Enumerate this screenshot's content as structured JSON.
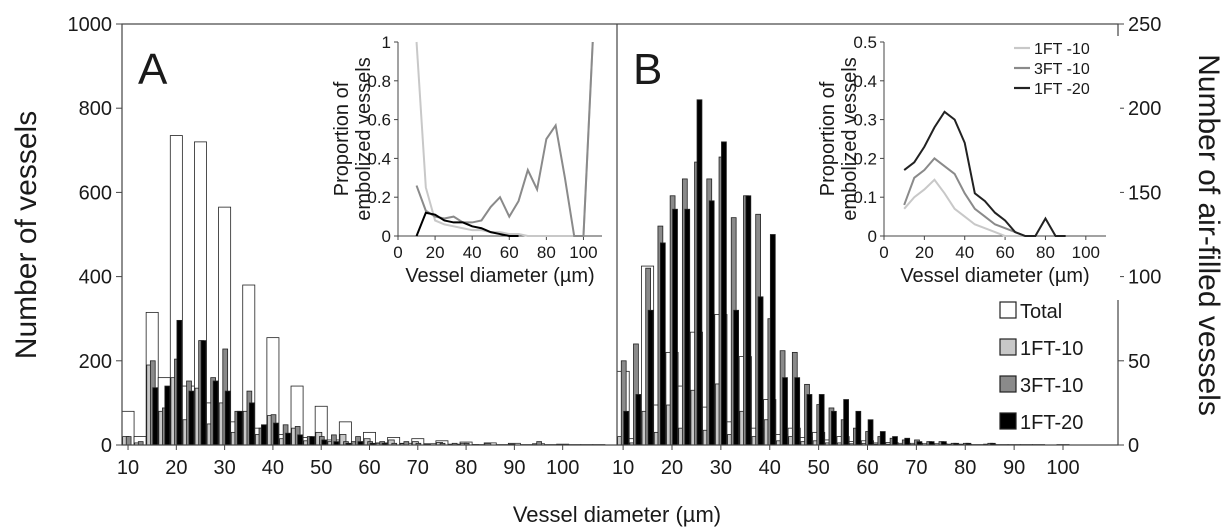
{
  "figure": {
    "xlabel": "Vessel diameter (µm)",
    "ylabel_left": "Number of vessels",
    "ylabel_right": "Number of air-filled vessels",
    "colors": {
      "Total": "#ffffff",
      "1FT-10": "#c8c8c8",
      "3FT-10": "#8a8a8a",
      "1FT-20": "#000000"
    }
  },
  "chart_data": [
    {
      "type": "bar",
      "panel_label": "A",
      "x_tick_labels": [
        "10",
        "20",
        "30",
        "40",
        "50",
        "60",
        "70",
        "80",
        "90",
        "100"
      ],
      "x_bins": [
        10,
        12.5,
        15,
        17.5,
        20,
        22.5,
        25,
        27.5,
        30,
        32.5,
        35,
        37.5,
        40,
        42.5,
        45,
        47.5,
        50,
        52.5,
        55,
        57.5,
        60,
        62.5,
        65,
        67.5,
        70,
        72.5,
        75,
        77.5,
        80,
        82.5,
        85,
        87.5,
        90,
        92.5,
        95,
        97.5,
        100,
        102.5,
        105,
        107.5
      ],
      "xlim": [
        8.75,
        111.25
      ],
      "y_left_ticks": [
        "0",
        "200",
        "400",
        "600",
        "800",
        "1000"
      ],
      "y_left_lim": [
        0,
        1000
      ],
      "y_right_lim": [
        0,
        250
      ],
      "series": [
        {
          "name": "Total",
          "axis": "left",
          "values": [
            80,
            20,
            315,
            160,
            735,
            140,
            720,
            100,
            565,
            55,
            380,
            40,
            255,
            25,
            140,
            18,
            92,
            12,
            55,
            8,
            30,
            5,
            18,
            4,
            15,
            3,
            10,
            2,
            7,
            1,
            5,
            1,
            4,
            1,
            3,
            1,
            2,
            1,
            1,
            1
          ]
        },
        {
          "name": "1FT-10",
          "axis": "left",
          "values": [
            20,
            5,
            190,
            80,
            160,
            60,
            135,
            50,
            100,
            30,
            80,
            25,
            70,
            15,
            40,
            10,
            30,
            8,
            25,
            5,
            15,
            4,
            12,
            3,
            8,
            2,
            6,
            1,
            4,
            1,
            3,
            0,
            2,
            0,
            1,
            0,
            1,
            0,
            0,
            0
          ]
        },
        {
          "name": "3FT-10",
          "axis": "right",
          "values": [
            5,
            2,
            50,
            22,
            51,
            38,
            62,
            40,
            57,
            20,
            32,
            10,
            18,
            12,
            11,
            5,
            5,
            6,
            2,
            5,
            2,
            2,
            1,
            2,
            1,
            0,
            1,
            1,
            1,
            0,
            0,
            0,
            0,
            0,
            2,
            0,
            0,
            0,
            0,
            0
          ]
        },
        {
          "name": "1FT-20",
          "axis": "right",
          "values": [
            0,
            0,
            34,
            35,
            74,
            32,
            62,
            38,
            32,
            20,
            25,
            12,
            13,
            7,
            6,
            5,
            3,
            2,
            1,
            2,
            1,
            1,
            0,
            0,
            0,
            0,
            0,
            0,
            0,
            0,
            0,
            0,
            0,
            0,
            0,
            0,
            0,
            0,
            0,
            0
          ]
        }
      ],
      "inset": {
        "type": "line",
        "xlabel": "Vessel diameter (µm)",
        "ylabel": [
          "Proportion of",
          "embolized vessels"
        ],
        "xlim": [
          0,
          110
        ],
        "ylim": [
          0,
          1
        ],
        "x_ticks": [
          "0",
          "20",
          "40",
          "60",
          "80",
          "100"
        ],
        "y_ticks": [
          "0",
          "0.2",
          "0.4",
          "0.6",
          "0.8",
          "1"
        ],
        "series": [
          {
            "name": "1FT-10",
            "color": "#c8c8c8",
            "points": [
              [
                10,
                1.0
              ],
              [
                15,
                0.25
              ],
              [
                20,
                0.08
              ],
              [
                25,
                0.06
              ],
              [
                30,
                0.05
              ],
              [
                35,
                0.04
              ],
              [
                40,
                0.03
              ],
              [
                45,
                0.03
              ],
              [
                50,
                0.02
              ],
              [
                55,
                0.02
              ],
              [
                60,
                0.01
              ],
              [
                65,
                0.01
              ],
              [
                70,
                0.0
              ],
              [
                80,
                0.0
              ],
              [
                90,
                0.0
              ],
              [
                100,
                0.0
              ],
              [
                105,
                1.0
              ]
            ]
          },
          {
            "name": "3FT-10",
            "color": "#8a8a8a",
            "points": [
              [
                10,
                0.26
              ],
              [
                15,
                0.13
              ],
              [
                20,
                0.1
              ],
              [
                25,
                0.09
              ],
              [
                30,
                0.1
              ],
              [
                35,
                0.07
              ],
              [
                40,
                0.07
              ],
              [
                45,
                0.08
              ],
              [
                50,
                0.15
              ],
              [
                55,
                0.2
              ],
              [
                60,
                0.1
              ],
              [
                65,
                0.18
              ],
              [
                70,
                0.34
              ],
              [
                75,
                0.24
              ],
              [
                80,
                0.5
              ],
              [
                85,
                0.57
              ],
              [
                90,
                0.3
              ],
              [
                95,
                0.0
              ],
              [
                100,
                0.0
              ],
              [
                105,
                1.0
              ]
            ]
          },
          {
            "name": "1FT-20",
            "color": "#000000",
            "points": [
              [
                10,
                0.0
              ],
              [
                15,
                0.12
              ],
              [
                20,
                0.11
              ],
              [
                25,
                0.08
              ],
              [
                30,
                0.07
              ],
              [
                35,
                0.07
              ],
              [
                40,
                0.05
              ],
              [
                45,
                0.04
              ],
              [
                50,
                0.02
              ],
              [
                55,
                0.01
              ],
              [
                60,
                0.0
              ],
              [
                65,
                0.0
              ]
            ]
          }
        ]
      }
    },
    {
      "type": "bar",
      "panel_label": "B",
      "x_tick_labels": [
        "10",
        "20",
        "30",
        "40",
        "50",
        "60",
        "70",
        "80",
        "90",
        "100"
      ],
      "x_bins": [
        10,
        12.5,
        15,
        17.5,
        20,
        22.5,
        25,
        27.5,
        30,
        32.5,
        35,
        37.5,
        40,
        42.5,
        45,
        47.5,
        50,
        52.5,
        55,
        57.5,
        60,
        62.5,
        65,
        67.5,
        70,
        72.5,
        75,
        77.5,
        80,
        82.5,
        85,
        87.5,
        90,
        92.5,
        95,
        97.5,
        100,
        102.5,
        105,
        107.5
      ],
      "xlim": [
        8.75,
        111.25
      ],
      "y_right_ticks": [
        "0",
        "50",
        "100",
        "150",
        "200",
        "250"
      ],
      "y_left_lim": [
        0,
        1000
      ],
      "y_right_lim": [
        0,
        250
      ],
      "series": [
        {
          "name": "Total",
          "axis": "left",
          "values": [
            175,
            15,
            425,
            95,
            220,
            140,
            268,
            90,
            310,
            55,
            210,
            40,
            108,
            25,
            40,
            18,
            30,
            12,
            20,
            8,
            10,
            5,
            6,
            4,
            4,
            3,
            3,
            2,
            2,
            1,
            2,
            1,
            1,
            1,
            1,
            0,
            1,
            0,
            0,
            0
          ]
        },
        {
          "name": "1FT-10",
          "axis": "left",
          "values": [
            20,
            5,
            80,
            30,
            95,
            40,
            130,
            35,
            145,
            25,
            80,
            20,
            60,
            10,
            20,
            8,
            10,
            5,
            5,
            3,
            4,
            2,
            2,
            1,
            1,
            0,
            0,
            0,
            0,
            0,
            0,
            0,
            0,
            0,
            0,
            0,
            0,
            0,
            0,
            0
          ]
        },
        {
          "name": "3FT-10",
          "axis": "right",
          "values": [
            50,
            60,
            105,
            130,
            148,
            158,
            168,
            158,
            171,
            135,
            148,
            137,
            75,
            56,
            55,
            36,
            24,
            22,
            15,
            10,
            8,
            5,
            4,
            3,
            3,
            2,
            2,
            1,
            1,
            0,
            1,
            0,
            0,
            0,
            0,
            0,
            0,
            0,
            0,
            0
          ]
        },
        {
          "name": "1FT-20",
          "axis": "right",
          "values": [
            20,
            30,
            80,
            120,
            140,
            140,
            205,
            145,
            180,
            80,
            148,
            88,
            125,
            40,
            40,
            30,
            30,
            20,
            27,
            20,
            15,
            8,
            5,
            4,
            2,
            2,
            2,
            1,
            1,
            0,
            1,
            0,
            0,
            0,
            0,
            0,
            0,
            0,
            0,
            0
          ]
        }
      ],
      "inset": {
        "type": "line",
        "xlabel": "Vessel diameter (µm)",
        "ylabel": [
          "Proportion of",
          "embolized vessels"
        ],
        "xlim": [
          0,
          110
        ],
        "ylim": [
          0,
          0.5
        ],
        "x_ticks": [
          "0",
          "20",
          "40",
          "60",
          "80",
          "100"
        ],
        "y_ticks": [
          "0",
          "0.1",
          "0.2",
          "0.3",
          "0.4",
          "0.5"
        ],
        "legend_labels": [
          "1FT -10",
          "3FT -10",
          "1FT -20"
        ],
        "series": [
          {
            "name": "1FT -10",
            "color": "#c8c8c8",
            "points": [
              [
                10,
                0.07
              ],
              [
                15,
                0.1
              ],
              [
                20,
                0.12
              ],
              [
                25,
                0.145
              ],
              [
                30,
                0.11
              ],
              [
                35,
                0.07
              ],
              [
                40,
                0.05
              ],
              [
                45,
                0.03
              ],
              [
                50,
                0.02
              ],
              [
                55,
                0.01
              ],
              [
                60,
                0.0
              ],
              [
                65,
                0.0
              ],
              [
                70,
                0.0
              ]
            ]
          },
          {
            "name": "3FT -10",
            "color": "#8a8a8a",
            "points": [
              [
                10,
                0.08
              ],
              [
                15,
                0.15
              ],
              [
                20,
                0.17
              ],
              [
                25,
                0.2
              ],
              [
                30,
                0.18
              ],
              [
                35,
                0.16
              ],
              [
                40,
                0.11
              ],
              [
                45,
                0.07
              ],
              [
                50,
                0.05
              ],
              [
                55,
                0.03
              ],
              [
                60,
                0.02
              ],
              [
                65,
                0.01
              ],
              [
                70,
                0.0
              ],
              [
                75,
                0.0
              ]
            ]
          },
          {
            "name": "1FT -20",
            "color": "#222222",
            "points": [
              [
                10,
                0.17
              ],
              [
                15,
                0.19
              ],
              [
                20,
                0.23
              ],
              [
                25,
                0.28
              ],
              [
                30,
                0.32
              ],
              [
                35,
                0.3
              ],
              [
                40,
                0.24
              ],
              [
                45,
                0.11
              ],
              [
                50,
                0.09
              ],
              [
                55,
                0.06
              ],
              [
                60,
                0.04
              ],
              [
                65,
                0.01
              ],
              [
                70,
                0.0
              ],
              [
                75,
                0.0
              ],
              [
                80,
                0.045
              ],
              [
                85,
                0.0
              ],
              [
                90,
                0.0
              ]
            ]
          }
        ]
      }
    }
  ],
  "legend": {
    "entries": [
      "Total",
      "1FT-10",
      "3FT-10",
      "1FT-20"
    ]
  }
}
